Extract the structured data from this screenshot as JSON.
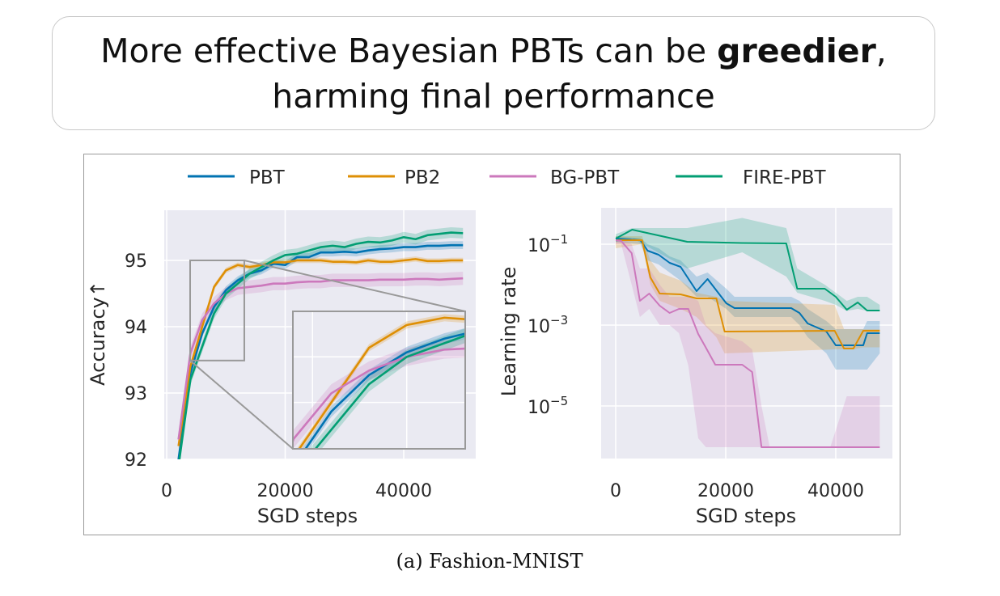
{
  "title": {
    "line1_prefix": "More effective Bayesian PBTs can be ",
    "line1_bold": "greedier",
    "line1_suffix": ",",
    "line2": "harming final performance"
  },
  "caption": "(a) Fashion-MNIST",
  "legend": {
    "placement": "top",
    "entries": [
      {
        "name": "PBT",
        "color": "#0173b2"
      },
      {
        "name": "PB2",
        "color": "#de8f05"
      },
      {
        "name": "BG-PBT",
        "color": "#cc78bc"
      },
      {
        "name": "FIRE-PBT",
        "color": "#029e73"
      }
    ]
  },
  "chart_data": [
    {
      "type": "line",
      "xlabel": "SGD steps",
      "ylabel": "Accuracy↑",
      "xlim": [
        -400,
        52200
      ],
      "ylim": [
        92,
        95.77
      ],
      "xticks": [
        0,
        20000,
        40000
      ],
      "yticks": [
        92,
        93,
        94,
        95
      ],
      "grid": true,
      "background": "#eaeaf2",
      "inset": {
        "xlim": [
          3960,
          13100
        ],
        "ylim": [
          93.49,
          95.0
        ],
        "xticks": [
          5000,
          10000
        ],
        "yticks": [
          94.0,
          94.5
        ]
      },
      "x": [
        2000,
        4000,
        6000,
        8000,
        10000,
        12000,
        14000,
        16000,
        18000,
        20000,
        22000,
        24000,
        26000,
        28000,
        30000,
        32000,
        34000,
        36000,
        38000,
        40000,
        42000,
        44000,
        46000,
        48000,
        50000
      ],
      "series": [
        {
          "name": "PBT",
          "color": "#0173b2",
          "band": 0.06,
          "values": [
            92.0,
            93.3,
            93.9,
            94.3,
            94.55,
            94.7,
            94.8,
            94.85,
            94.95,
            94.93,
            95.05,
            95.05,
            95.12,
            95.12,
            95.13,
            95.12,
            95.15,
            95.17,
            95.18,
            95.2,
            95.2,
            95.22,
            95.22,
            95.23,
            95.23
          ]
        },
        {
          "name": "PB2",
          "color": "#de8f05",
          "band": 0.04,
          "values": [
            92.2,
            93.4,
            94.0,
            94.6,
            94.85,
            94.93,
            94.9,
            94.93,
            94.97,
            94.97,
            95.0,
            95.0,
            95.0,
            94.98,
            94.98,
            94.97,
            95.0,
            94.98,
            94.98,
            95.0,
            95.02,
            94.99,
            94.99,
            95.0,
            95.0
          ]
        },
        {
          "name": "BG-PBT",
          "color": "#cc78bc",
          "band": 0.1,
          "values": [
            92.3,
            93.6,
            94.1,
            94.35,
            94.5,
            94.58,
            94.6,
            94.62,
            94.65,
            94.65,
            94.67,
            94.68,
            94.68,
            94.7,
            94.7,
            94.7,
            94.7,
            94.71,
            94.71,
            94.71,
            94.72,
            94.72,
            94.71,
            94.72,
            94.73
          ]
        },
        {
          "name": "FIRE-PBT",
          "color": "#029e73",
          "band": 0.08,
          "values": [
            91.9,
            93.2,
            93.7,
            94.2,
            94.5,
            94.65,
            94.8,
            94.9,
            95.0,
            95.08,
            95.1,
            95.15,
            95.2,
            95.22,
            95.2,
            95.25,
            95.28,
            95.27,
            95.3,
            95.35,
            95.32,
            95.38,
            95.4,
            95.42,
            95.41
          ]
        }
      ]
    },
    {
      "type": "line",
      "xlabel": "SGD steps",
      "ylabel": "Learning rate",
      "yscale": "log",
      "xlim": [
        -2600,
        50300
      ],
      "ylim_log10": [
        -6.28,
        -0.1
      ],
      "xticks": [
        0,
        20000,
        40000
      ],
      "yticks_log10": [
        -1,
        -3,
        -5
      ],
      "grid": true,
      "background": "#eaeaf2",
      "series": [
        {
          "name": "PBT",
          "color": "#0173b2",
          "x": [
            0,
            4500,
            5800,
            7800,
            9800,
            11800,
            14700,
            16700,
            20100,
            21600,
            31900,
            33400,
            34900,
            38300,
            40000,
            45000,
            45700,
            48000
          ],
          "log10": [
            -0.86,
            -0.9,
            -1.16,
            -1.26,
            -1.46,
            -1.56,
            -2.16,
            -1.86,
            -2.46,
            -2.58,
            -2.58,
            -2.7,
            -2.96,
            -3.16,
            -3.5,
            -3.5,
            -3.2,
            -3.2
          ],
          "lower": [
            -0.95,
            -1.0,
            -1.4,
            -1.5,
            -1.7,
            -1.9,
            -2.3,
            -2.3,
            -2.6,
            -2.8,
            -2.8,
            -3.0,
            -3.3,
            -3.7,
            -4.1,
            -4.1,
            -4.1,
            -3.7
          ],
          "upper": [
            -0.8,
            -0.85,
            -1.0,
            -1.1,
            -1.3,
            -1.4,
            -1.8,
            -1.7,
            -2.1,
            -2.3,
            -2.3,
            -2.4,
            -2.6,
            -2.9,
            -3.1,
            -3.1,
            -2.9,
            -2.9
          ]
        },
        {
          "name": "PB2",
          "color": "#de8f05",
          "x": [
            0,
            4800,
            6300,
            8000,
            11800,
            14700,
            18300,
            19800,
            39800,
            41500,
            43200,
            45000,
            48000
          ],
          "log10": [
            -0.9,
            -0.9,
            -1.82,
            -2.22,
            -2.24,
            -2.34,
            -2.34,
            -3.16,
            -3.14,
            -3.58,
            -3.58,
            -3.14,
            -3.14
          ],
          "lower": [
            -1.1,
            -1.0,
            -2.0,
            -2.4,
            -2.6,
            -2.8,
            -3.3,
            -3.7,
            -3.6,
            -3.6,
            -3.6,
            -3.55,
            -3.55
          ],
          "upper": [
            -0.8,
            -0.8,
            -1.4,
            -1.7,
            -1.9,
            -2.2,
            -2.3,
            -2.4,
            -2.5,
            -3.1,
            -3.1,
            -3.1,
            -3.1
          ]
        },
        {
          "name": "BG-PBT",
          "color": "#cc78bc",
          "x": [
            0,
            1000,
            2900,
            4400,
            6100,
            8000,
            9800,
            11500,
            13200,
            15000,
            16400,
            18100,
            23000,
            24800,
            26500,
            28000,
            39000,
            42000,
            48000
          ],
          "log10": [
            -0.9,
            -0.92,
            -1.22,
            -2.4,
            -2.22,
            -2.52,
            -2.7,
            -2.6,
            -2.6,
            -3.22,
            -3.56,
            -3.98,
            -3.98,
            -4.16,
            -6.02,
            -6.02,
            -6.02,
            -6.02,
            -6.02
          ],
          "lower": [
            -1.0,
            -1.0,
            -2.0,
            -2.8,
            -2.6,
            -3.0,
            -3.0,
            -3.2,
            -4.0,
            -5.8,
            -6.02,
            -6.02,
            -6.02,
            -6.02,
            -6.02,
            -6.02,
            -6.02,
            -6.02,
            -6.02
          ],
          "upper": [
            -0.85,
            -0.85,
            -1.0,
            -1.6,
            -1.6,
            -2.0,
            -2.3,
            -2.3,
            -2.3,
            -2.4,
            -3.0,
            -3.2,
            -3.4,
            -3.6,
            -5.0,
            -6.02,
            -6.02,
            -4.76,
            -4.76
          ]
        },
        {
          "name": "FIRE-PBT",
          "color": "#029e73",
          "x": [
            0,
            3000,
            13000,
            23000,
            31000,
            33000,
            38000,
            40000,
            42000,
            44000,
            45700,
            48000
          ],
          "log10": [
            -0.86,
            -0.64,
            -0.94,
            -0.97,
            -0.98,
            -2.1,
            -2.1,
            -2.3,
            -2.62,
            -2.44,
            -2.64,
            -2.64
          ],
          "lower": [
            -0.95,
            -0.85,
            -1.6,
            -1.2,
            -1.8,
            -2.2,
            -2.4,
            -2.5,
            -2.65,
            -2.6,
            -2.65,
            -2.65
          ],
          "upper": [
            -0.75,
            -0.6,
            -0.6,
            -0.35,
            -0.6,
            -1.6,
            -2.0,
            -2.2,
            -2.4,
            -2.3,
            -2.3,
            -2.5
          ]
        }
      ]
    }
  ]
}
